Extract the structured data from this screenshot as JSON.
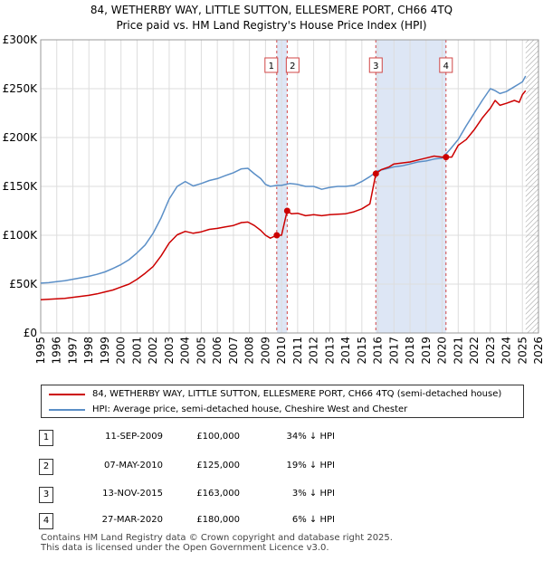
{
  "title_line1": "84, WETHERBY WAY, LITTLE SUTTON, ELLESMERE PORT, CH66 4TQ",
  "title_line2": "Price paid vs. HM Land Registry's House Price Index (HPI)",
  "colors": {
    "property": "#cc0000",
    "hpi": "#5b8fc7",
    "sale_band": "#dde6f5",
    "marker_line": "#d04545",
    "grid": "#dddddd",
    "plot_bg": "#ffffff"
  },
  "chart_data": {
    "type": "line",
    "title": "Price paid vs. HM Land Registry's House Price Index (HPI)",
    "xlabel": "",
    "ylabel": "",
    "xlim": [
      1995,
      2026
    ],
    "ylim": [
      0,
      300000
    ],
    "y_ticks": [
      {
        "value": 0,
        "label": "£0"
      },
      {
        "value": 50000,
        "label": "£50K"
      },
      {
        "value": 100000,
        "label": "£100K"
      },
      {
        "value": 150000,
        "label": "£150K"
      },
      {
        "value": 200000,
        "label": "£200K"
      },
      {
        "value": 250000,
        "label": "£250K"
      },
      {
        "value": 300000,
        "label": "£300K"
      }
    ],
    "x_ticks": [
      "1995",
      "1996",
      "1997",
      "1998",
      "1999",
      "2000",
      "2001",
      "2002",
      "2003",
      "2004",
      "2005",
      "2006",
      "2007",
      "2008",
      "2009",
      "2010",
      "2011",
      "2012",
      "2013",
      "2014",
      "2015",
      "2016",
      "2017",
      "2018",
      "2019",
      "2020",
      "2021",
      "2022",
      "2023",
      "2024",
      "2025",
      "2026"
    ],
    "grid": true,
    "data_end": 2025.2,
    "series": [
      {
        "name": "hpi",
        "color": "#5b8fc7",
        "x": [
          1995.0,
          1995.5,
          1996.0,
          1996.5,
          1997.0,
          1997.5,
          1998.0,
          1998.5,
          1999.0,
          1999.5,
          2000.0,
          2000.5,
          2001.0,
          2001.5,
          2002.0,
          2002.5,
          2003.0,
          2003.5,
          2004.0,
          2004.5,
          2005.0,
          2005.5,
          2006.0,
          2006.5,
          2007.0,
          2007.5,
          2007.9,
          2008.3,
          2008.7,
          2009.0,
          2009.3,
          2009.7,
          2010.0,
          2010.5,
          2011.0,
          2011.5,
          2012.0,
          2012.5,
          2013.0,
          2013.5,
          2014.0,
          2014.5,
          2015.0,
          2015.5,
          2016.0,
          2016.5,
          2017.0,
          2017.5,
          2018.0,
          2018.5,
          2019.0,
          2019.5,
          2020.0,
          2020.5,
          2021.0,
          2021.5,
          2022.0,
          2022.5,
          2023.0,
          2023.3,
          2023.6,
          2024.0,
          2024.5,
          2024.8,
          2025.0,
          2025.2
        ],
        "y": [
          51000,
          51500,
          52500,
          53500,
          55000,
          56500,
          58000,
          60000,
          62500,
          66000,
          70000,
          75000,
          82000,
          90000,
          102000,
          118000,
          137000,
          150000,
          155000,
          150500,
          153000,
          156000,
          158000,
          161000,
          164000,
          168000,
          168500,
          163000,
          158000,
          152000,
          150000,
          151000,
          151000,
          153000,
          152000,
          150000,
          150000,
          147000,
          149000,
          150000,
          150000,
          151000,
          155000,
          160000,
          166000,
          168000,
          170000,
          171000,
          173000,
          175000,
          176000,
          178000,
          179000,
          188000,
          198000,
          212000,
          225000,
          238000,
          250000,
          248000,
          245000,
          247000,
          252000,
          255000,
          257000,
          263000
        ]
      },
      {
        "name": "property",
        "color": "#cc0000",
        "x": [
          1995.0,
          1995.5,
          1996.0,
          1996.5,
          1997.0,
          1997.5,
          1998.0,
          1998.5,
          1999.0,
          1999.5,
          2000.0,
          2000.5,
          2001.0,
          2001.5,
          2002.0,
          2002.5,
          2003.0,
          2003.5,
          2004.0,
          2004.5,
          2005.0,
          2005.5,
          2006.0,
          2006.5,
          2007.0,
          2007.5,
          2007.9,
          2008.3,
          2008.7,
          2009.0,
          2009.3,
          2009.7,
          2010.0,
          2010.35,
          2010.6,
          2011.0,
          2011.5,
          2012.0,
          2012.5,
          2013.0,
          2013.5,
          2014.0,
          2014.5,
          2015.0,
          2015.5,
          2015.87,
          2016.2,
          2016.7,
          2017.0,
          2017.5,
          2018.0,
          2018.5,
          2019.0,
          2019.5,
          2020.0,
          2020.24,
          2020.6,
          2021.0,
          2021.5,
          2022.0,
          2022.5,
          2023.0,
          2023.3,
          2023.6,
          2024.0,
          2024.5,
          2024.8,
          2025.0,
          2025.2
        ],
        "y": [
          34000,
          34500,
          35000,
          35500,
          36500,
          37500,
          38500,
          40000,
          42000,
          44000,
          47000,
          50000,
          55000,
          61000,
          68000,
          79000,
          92000,
          100500,
          104000,
          102000,
          103500,
          106000,
          107000,
          108500,
          110000,
          113000,
          113500,
          110000,
          105000,
          100000,
          97000,
          100000,
          100000,
          125000,
          122000,
          122500,
          120000,
          121000,
          120000,
          121000,
          121500,
          122000,
          124000,
          127000,
          132000,
          163000,
          167000,
          170000,
          173000,
          174000,
          175000,
          177000,
          179000,
          181000,
          180000,
          180000,
          180000,
          192000,
          198000,
          208000,
          220000,
          230000,
          238000,
          233000,
          235000,
          238000,
          236000,
          244000,
          248000
        ]
      }
    ],
    "sales": [
      {
        "id": "1",
        "x": 2009.7,
        "price": 100000
      },
      {
        "id": "2",
        "x": 2010.35,
        "price": 125000
      },
      {
        "id": "3",
        "x": 2015.87,
        "price": 163000
      },
      {
        "id": "4",
        "x": 2020.24,
        "price": 180000
      }
    ]
  },
  "legend": {
    "property_label": "84, WETHERBY WAY, LITTLE SUTTON, ELLESMERE PORT, CH66 4TQ (semi-detached house)",
    "hpi_label": "HPI: Average price, semi-detached house, Cheshire West and Chester"
  },
  "sales_table": [
    {
      "num": "1",
      "date": "11-SEP-2009",
      "price": "£100,000",
      "hpi": "34% ↓ HPI"
    },
    {
      "num": "2",
      "date": "07-MAY-2010",
      "price": "£125,000",
      "hpi": "19% ↓ HPI"
    },
    {
      "num": "3",
      "date": "13-NOV-2015",
      "price": "£163,000",
      "hpi": "3% ↓ HPI"
    },
    {
      "num": "4",
      "date": "27-MAR-2020",
      "price": "£180,000",
      "hpi": "6% ↓ HPI"
    }
  ],
  "footer": {
    "line1": "Contains HM Land Registry data © Crown copyright and database right 2025.",
    "line2": "This data is licensed under the Open Government Licence v3.0."
  }
}
